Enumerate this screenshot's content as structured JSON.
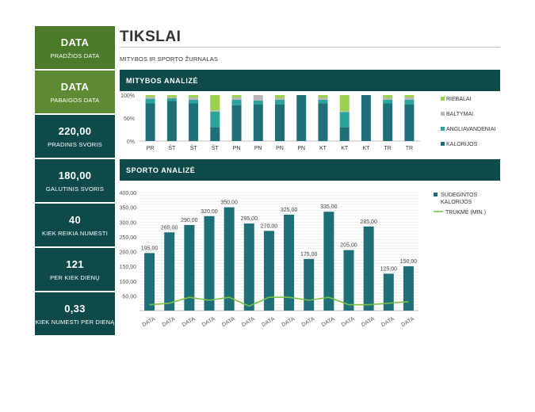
{
  "sidebar": [
    {
      "value": "DATA",
      "label": "PRADŽIOS DATA",
      "style": "green-dark"
    },
    {
      "value": "DATA",
      "label": "PABAIGOS DATA",
      "style": "green-light"
    },
    {
      "value": "220,00",
      "label": "PRADINIS SVORIS",
      "style": "teal"
    },
    {
      "value": "180,00",
      "label": "GALUTINIS SVORIS",
      "style": "teal"
    },
    {
      "value": "40",
      "label": "KIEK REIKIA NUMESTI",
      "style": "teal"
    },
    {
      "value": "121",
      "label": "PER KIEK DIENŲ",
      "style": "teal"
    },
    {
      "value": "0,33",
      "label": "KIEK NUMESTI PER DIENĄ",
      "style": "teal"
    }
  ],
  "header": {
    "title": "TIKSLAI",
    "subtitle": "MITYBOS IR SPORTO ŽURNALAS"
  },
  "sections": {
    "nutrition": "MITYBOS ANALIZĖ",
    "sport": "SPORTO ANALIZĖ"
  },
  "colors": {
    "teal": "#1f6f78",
    "teal_light": "#2aa39a",
    "grey": "#b7b7b7",
    "green": "#9bd14a",
    "line": "#7ac143"
  },
  "chart_data": [
    {
      "type": "bar",
      "stacked": "percent",
      "categories": [
        "PR",
        "ŠT",
        "ŠT",
        "ŠT",
        "PN",
        "PN",
        "PN",
        "PN",
        "KT",
        "KT",
        "KT",
        "TR",
        "TR"
      ],
      "yticks": [
        "0%",
        "50%",
        "100%"
      ],
      "ylim": [
        0,
        100
      ],
      "legend_position": "right",
      "series": [
        {
          "name": "KALORIJOS",
          "color": "#1f6f78",
          "values": [
            82,
            87,
            82,
            30,
            78,
            80,
            80,
            100,
            82,
            30,
            100,
            82,
            80
          ]
        },
        {
          "name": "ANGLIAVANDENIAI",
          "color": "#2aa39a",
          "values": [
            10,
            6,
            8,
            34,
            12,
            8,
            10,
            0,
            8,
            33,
            0,
            8,
            10
          ]
        },
        {
          "name": "BALTYMAI",
          "color": "#b7b7b7",
          "values": [
            4,
            2,
            5,
            3,
            5,
            12,
            4,
            0,
            4,
            2,
            0,
            4,
            5
          ]
        },
        {
          "name": "RIEBALAI",
          "color": "#9bd14a",
          "values": [
            4,
            5,
            5,
            33,
            5,
            0,
            6,
            0,
            6,
            35,
            0,
            6,
            5
          ]
        }
      ]
    },
    {
      "type": "bar",
      "categories": [
        "DATA",
        "DATA",
        "DATA",
        "DATA",
        "DATA",
        "DATA",
        "DATA",
        "DATA",
        "DATA",
        "DATA",
        "DATA",
        "DATA",
        "DATA",
        "DATA"
      ],
      "ylim": [
        0,
        400
      ],
      "yticks": [
        "50,00",
        "100,00",
        "150,00",
        "200,00",
        "250,00",
        "300,00",
        "350,00",
        "400,00"
      ],
      "grid": true,
      "legend_position": "right",
      "series": [
        {
          "name": "SUDEGINTOS KALORIJOS",
          "type": "bar",
          "color": "#1f6f78",
          "values": [
            195,
            265,
            290,
            320,
            350,
            295,
            270,
            325,
            175,
            335,
            205,
            285,
            125,
            150
          ],
          "labels": [
            "195,00",
            "265,00",
            "290,00",
            "320,00",
            "350,00",
            "295,00",
            "270,00",
            "325,00",
            "175,00",
            "335,00",
            "205,00",
            "285,00",
            "125,00",
            "150,00"
          ]
        },
        {
          "name": "TRUKMĖ (MIN.)",
          "type": "line",
          "color": "#7ac143",
          "values": [
            20,
            25,
            45,
            35,
            45,
            15,
            45,
            45,
            35,
            45,
            20,
            20,
            25,
            30
          ]
        }
      ]
    }
  ]
}
